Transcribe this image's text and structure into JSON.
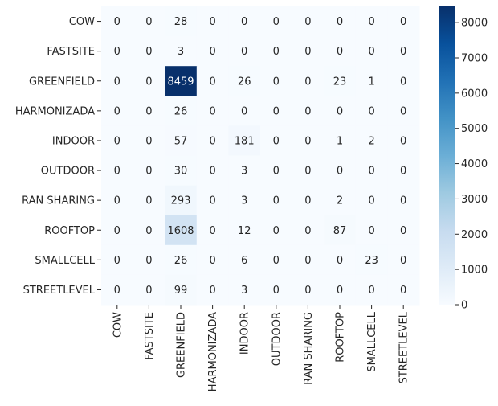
{
  "chart_data": {
    "type": "heatmap",
    "title": "",
    "xlabel": "",
    "ylabel": "",
    "row_labels": [
      "COW",
      "FASTSITE",
      "GREENFIELD",
      "HARMONIZADA",
      "INDOOR",
      "OUTDOOR",
      "RAN SHARING",
      "ROOFTOP",
      "SMALLCELL",
      "STREETLEVEL"
    ],
    "col_labels": [
      "COW",
      "FASTSITE",
      "GREENFIELD",
      "HARMONIZADA",
      "INDOOR",
      "OUTDOOR",
      "RAN SHARING",
      "ROOFTOP",
      "SMALLCELL",
      "STREETLEVEL"
    ],
    "values": [
      [
        0,
        0,
        28,
        0,
        0,
        0,
        0,
        0,
        0,
        0
      ],
      [
        0,
        0,
        3,
        0,
        0,
        0,
        0,
        0,
        0,
        0
      ],
      [
        0,
        0,
        8459,
        0,
        26,
        0,
        0,
        23,
        1,
        0
      ],
      [
        0,
        0,
        26,
        0,
        0,
        0,
        0,
        0,
        0,
        0
      ],
      [
        0,
        0,
        57,
        0,
        181,
        0,
        0,
        1,
        2,
        0
      ],
      [
        0,
        0,
        30,
        0,
        3,
        0,
        0,
        0,
        0,
        0
      ],
      [
        0,
        0,
        293,
        0,
        3,
        0,
        0,
        2,
        0,
        0
      ],
      [
        0,
        0,
        1608,
        0,
        12,
        0,
        0,
        87,
        0,
        0
      ],
      [
        0,
        0,
        26,
        0,
        6,
        0,
        0,
        0,
        23,
        0
      ],
      [
        0,
        0,
        99,
        0,
        3,
        0,
        0,
        0,
        0,
        0
      ]
    ],
    "colormap": "Blues",
    "vmin": 0,
    "vmax": 8459,
    "colorbar_ticks": [
      0,
      1000,
      2000,
      3000,
      4000,
      5000,
      6000,
      7000,
      8000
    ],
    "grid": false
  }
}
